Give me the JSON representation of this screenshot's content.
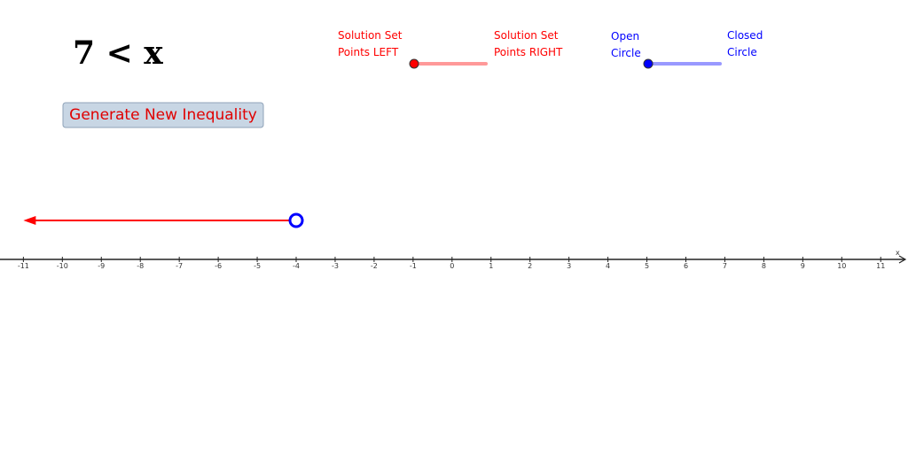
{
  "inequality": "7 < x",
  "button": {
    "label": "Generate New Inequality"
  },
  "sliders": [
    {
      "left_label": [
        "Solution Set",
        "Points LEFT"
      ],
      "right_label": [
        "Solution Set",
        "Points RIGHT"
      ],
      "color": "#ff0000"
    },
    {
      "left_label": [
        "Open",
        "Circle"
      ],
      "right_label": [
        "Closed",
        "Circle"
      ],
      "color": "#0000ff"
    }
  ],
  "number_line": {
    "axis_label": "x",
    "xlim": [
      -11.6,
      11.7
    ],
    "ticks": [
      -11,
      -10,
      -9,
      -8,
      -7,
      -6,
      -5,
      -4,
      -3,
      -2,
      -1,
      0,
      1,
      2,
      3,
      4,
      5,
      6,
      7,
      8,
      9,
      10,
      11
    ],
    "point": -4,
    "ray_color": "#ff0000",
    "point_color": "#0000ff"
  }
}
